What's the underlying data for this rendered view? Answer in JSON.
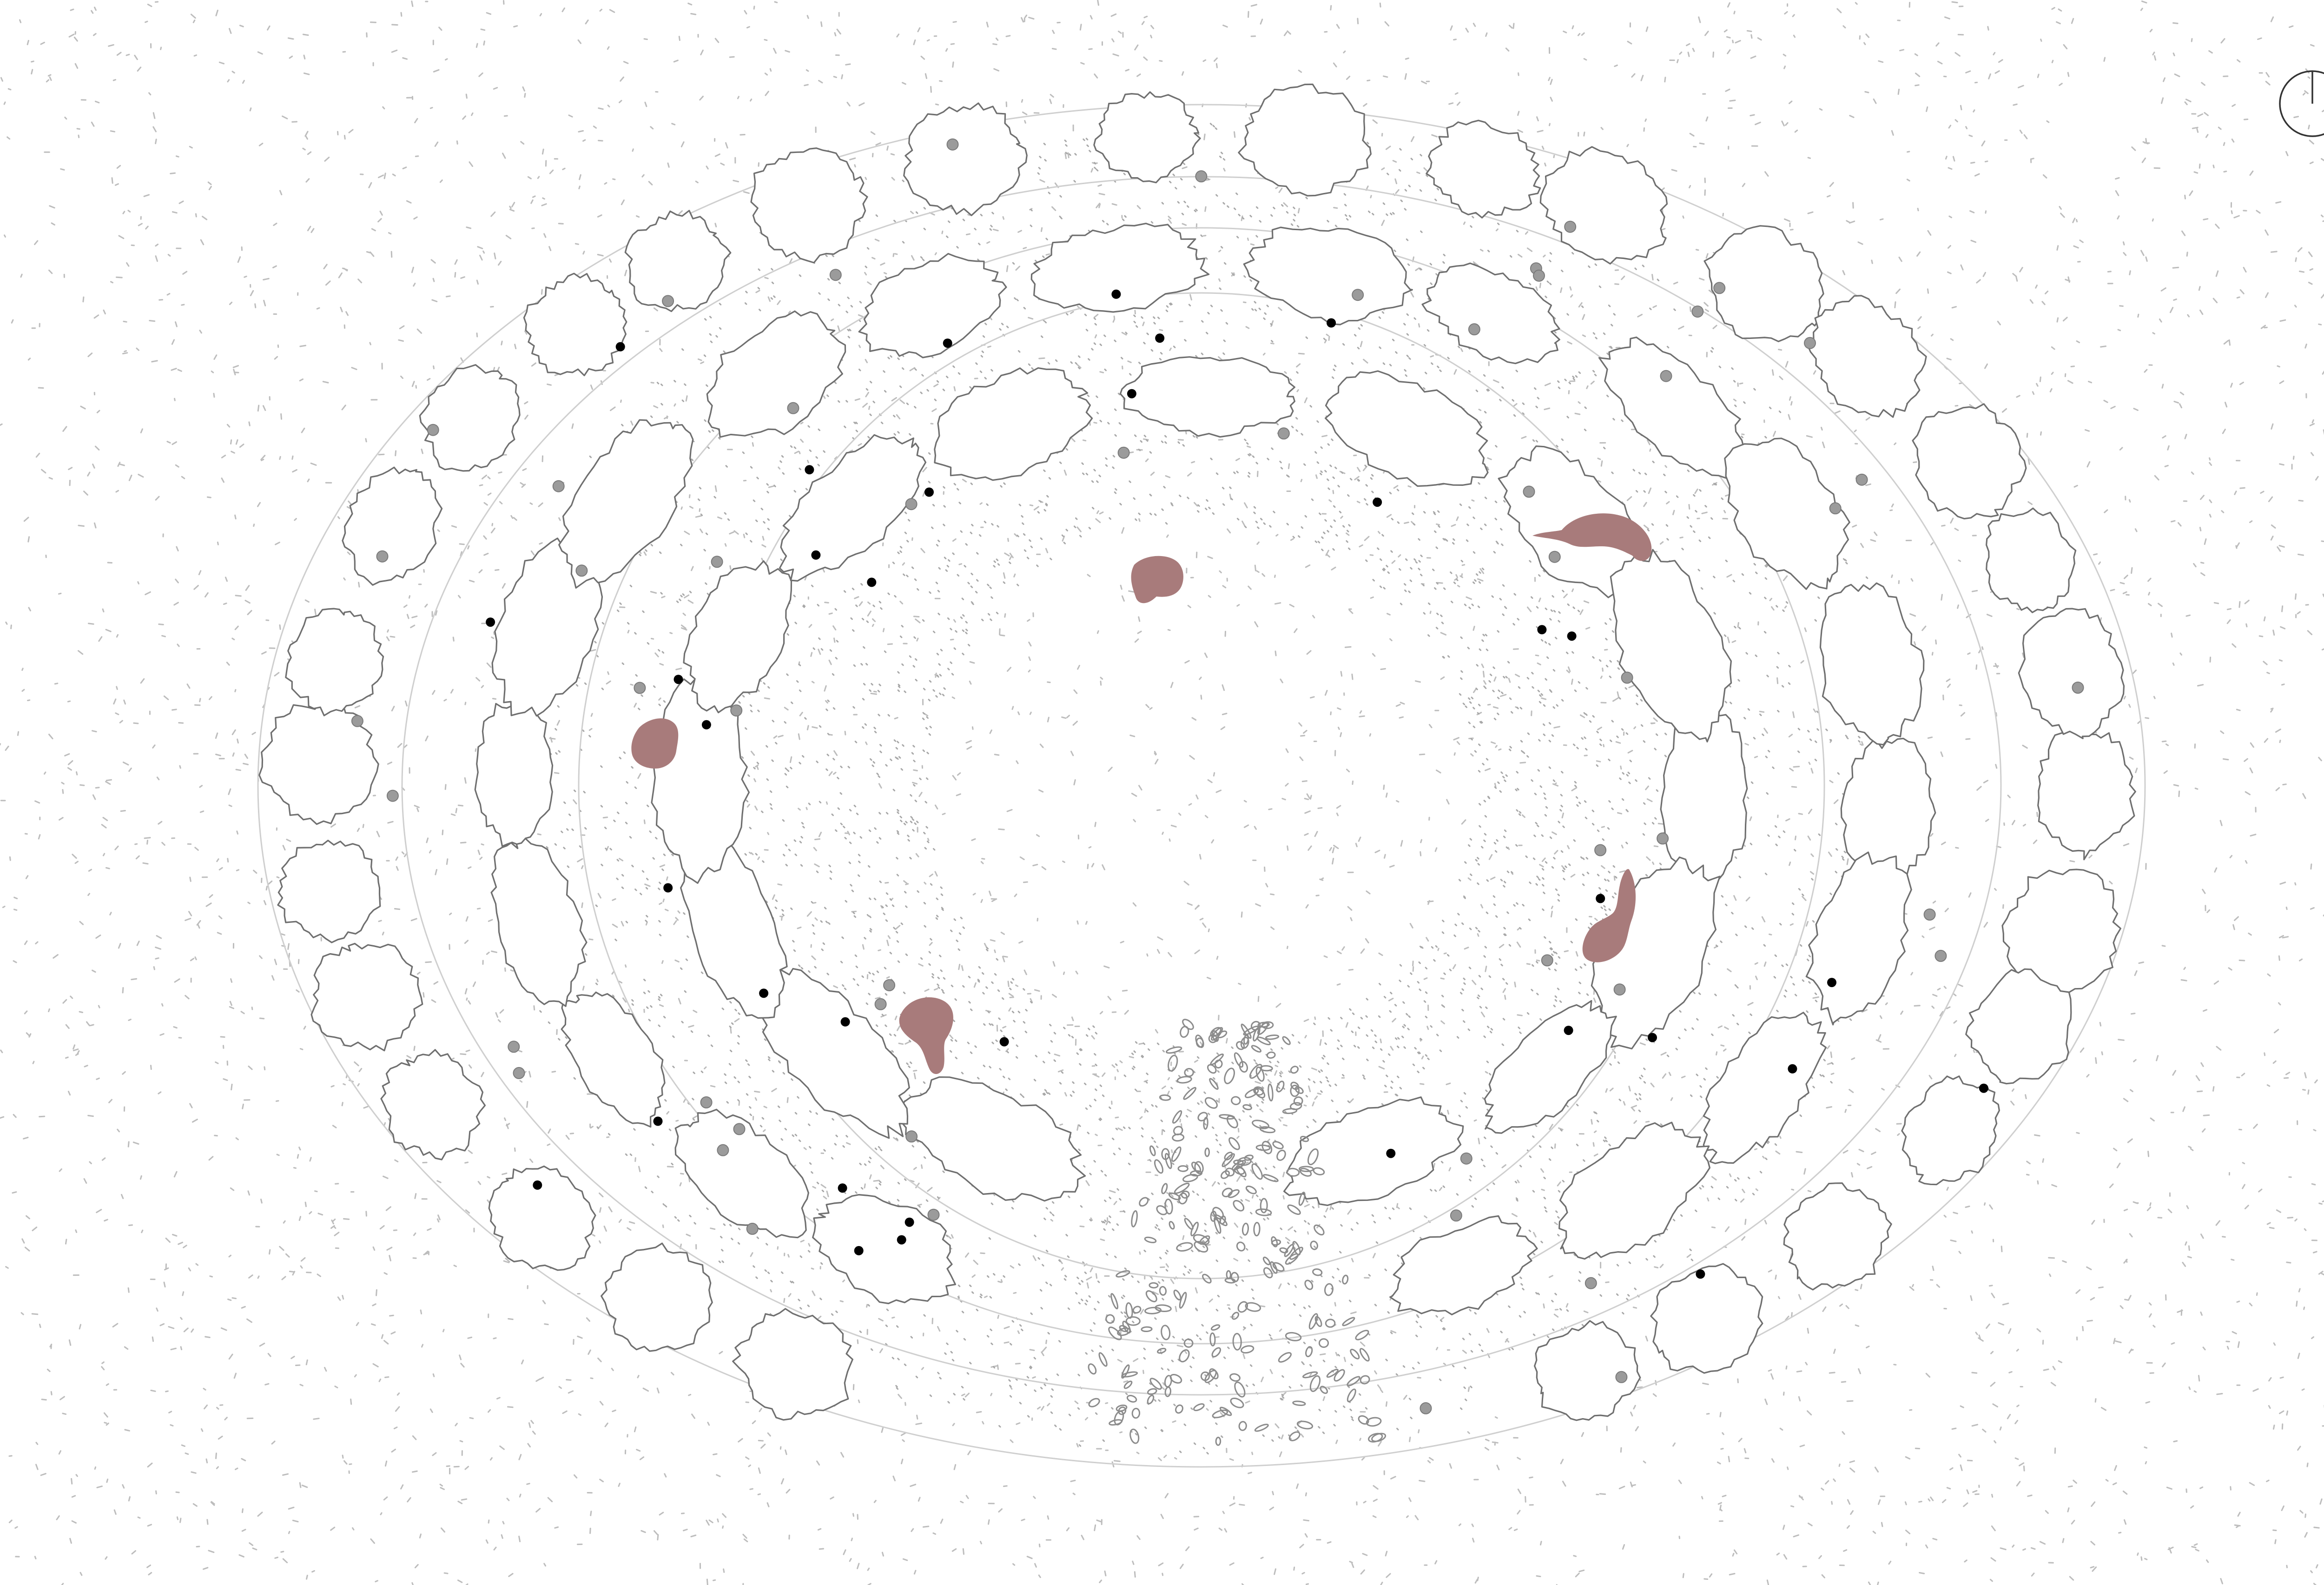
{
  "diagram": {
    "kind": "landscape-plan",
    "colors": {
      "background": "#ffffff",
      "ground_speck": "#b9b9b9",
      "shrub_outline": "#6f6f6f",
      "trunk_gray": "#9b9b9b",
      "trunk_black": "#000000",
      "human_figure": "#a87b7b",
      "north_symbol": "#333333"
    },
    "layers": [
      {
        "name": "ground-texture"
      },
      {
        "name": "ring-guides"
      },
      {
        "name": "shrub-masses"
      },
      {
        "name": "stepping-stone-path"
      },
      {
        "name": "tree-trunks"
      },
      {
        "name": "human-figures"
      },
      {
        "name": "north-symbol"
      }
    ],
    "counts": {
      "human_figures": 5
    }
  }
}
